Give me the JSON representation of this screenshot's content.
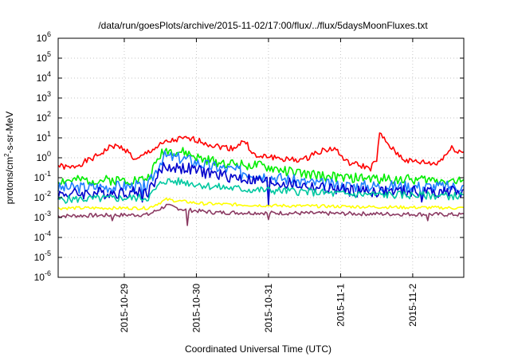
{
  "chart_data": {
    "type": "line",
    "title": "/data/run/goesPlots/archive/2015-11-02/17:00/flux/../flux/5daysMoonFluxes.txt",
    "xlabel": "Coordinated Universal Time (UTC)",
    "ylabel_parts": [
      "protons/cm",
      "2",
      "-s-sr-MeV"
    ],
    "y_scale": "log",
    "ylim": [
      1e-06,
      1000000.0
    ],
    "y_ticks": [
      {
        "base": "10",
        "exp": "-6",
        "value": 1e-06
      },
      {
        "base": "10",
        "exp": "-5",
        "value": 1e-05
      },
      {
        "base": "10",
        "exp": "-4",
        "value": 0.0001
      },
      {
        "base": "10",
        "exp": "-3",
        "value": 0.001
      },
      {
        "base": "10",
        "exp": "-2",
        "value": 0.01
      },
      {
        "base": "10",
        "exp": "-1",
        "value": 0.1
      },
      {
        "base": "10",
        "exp": "0",
        "value": 1
      },
      {
        "base": "10",
        "exp": "1",
        "value": 10
      },
      {
        "base": "10",
        "exp": "2",
        "value": 100
      },
      {
        "base": "10",
        "exp": "3",
        "value": 1000
      },
      {
        "base": "10",
        "exp": "4",
        "value": 10000
      },
      {
        "base": "10",
        "exp": "5",
        "value": 100000
      },
      {
        "base": "10",
        "exp": "6",
        "value": 1000000
      }
    ],
    "xlim": [
      "2015-10-28T02:00",
      "2015-11-02T17:00"
    ],
    "x_ticks": [
      {
        "label": "2015-10-29",
        "date": "2015-10-29T00:00"
      },
      {
        "label": "2015-10-30",
        "date": "2015-10-30T00:00"
      },
      {
        "label": "2015-10-31",
        "date": "2015-10-31T00:00"
      },
      {
        "label": "2015-11-1",
        "date": "2015-11-01T00:00"
      },
      {
        "label": "2015-11-2",
        "date": "2015-11-02T00:00"
      }
    ],
    "grid": true,
    "series": [
      {
        "color": "#ff0000",
        "base": [
          [
            "2015-10-28T02:00",
            0.4
          ],
          [
            "2015-10-28T06:00",
            0.3
          ],
          [
            "2015-10-28T14:00",
            1.0
          ],
          [
            "2015-10-28T20:00",
            4.0
          ],
          [
            "2015-10-29T00:00",
            3.0
          ],
          [
            "2015-10-29T04:00",
            0.7
          ],
          [
            "2015-10-29T08:00",
            2.0
          ],
          [
            "2015-10-29T14:00",
            6.0
          ],
          [
            "2015-10-29T19:00",
            9.0
          ],
          [
            "2015-10-30T00:00",
            8.0
          ],
          [
            "2015-10-30T06:00",
            4.0
          ],
          [
            "2015-10-30T12:00",
            3.0
          ],
          [
            "2015-10-30T16:00",
            7.0
          ],
          [
            "2015-10-30T20:00",
            1.0
          ],
          [
            "2015-10-31T00:00",
            1.2
          ],
          [
            "2015-10-31T06:00",
            0.8
          ],
          [
            "2015-10-31T12:00",
            0.8
          ],
          [
            "2015-10-31T16:00",
            2.0
          ],
          [
            "2015-10-31T22:00",
            3.0
          ],
          [
            "2015-11-01T02:00",
            0.6
          ],
          [
            "2015-11-01T10:00",
            0.3
          ],
          [
            "2015-11-01T12:00",
            0.8
          ],
          [
            "2015-11-01T13:00",
            15.0
          ],
          [
            "2015-11-01T18:00",
            2.0
          ],
          [
            "2015-11-01T22:00",
            0.7
          ],
          [
            "2015-11-02T08:00",
            0.5
          ],
          [
            "2015-11-02T13:00",
            3.0
          ],
          [
            "2015-11-02T17:00",
            1.8
          ]
        ],
        "noise": 0.15,
        "seed": 1,
        "spikes": []
      },
      {
        "color": "#00ee00",
        "base": [
          [
            "2015-10-28T02:00",
            0.07
          ],
          [
            "2015-10-29T06:00",
            0.08
          ],
          [
            "2015-10-29T08:00",
            0.1
          ],
          [
            "2015-10-29T13:00",
            2.5
          ],
          [
            "2015-10-29T20:00",
            1.8
          ],
          [
            "2015-10-30T02:00",
            0.8
          ],
          [
            "2015-10-30T12:00",
            0.5
          ],
          [
            "2015-10-30T20:00",
            0.4
          ],
          [
            "2015-10-31T04:00",
            0.25
          ],
          [
            "2015-10-31T12:00",
            0.15
          ],
          [
            "2015-11-01T00:00",
            0.1
          ],
          [
            "2015-11-02T17:00",
            0.07
          ]
        ],
        "noise": 0.25,
        "seed": 2,
        "spikes": []
      },
      {
        "color": "#1e7fff",
        "base": [
          [
            "2015-10-28T02:00",
            0.03
          ],
          [
            "2015-10-29T08:00",
            0.04
          ],
          [
            "2015-10-29T13:00",
            1.2
          ],
          [
            "2015-10-29T20:00",
            0.9
          ],
          [
            "2015-10-30T04:00",
            0.4
          ],
          [
            "2015-10-30T12:00",
            0.25
          ],
          [
            "2015-10-31T00:00",
            0.12
          ],
          [
            "2015-10-31T12:00",
            0.06
          ],
          [
            "2015-11-01T00:00",
            0.04
          ],
          [
            "2015-11-02T17:00",
            0.035
          ]
        ],
        "noise": 0.3,
        "seed": 3,
        "spikes": [
          [
            "2015-10-29T06:00",
            0.01
          ],
          [
            "2015-10-30T15:00",
            0.08
          ],
          [
            "2015-10-31T00:00",
            0.008
          ],
          [
            "2015-11-02T03:00",
            0.01
          ]
        ]
      },
      {
        "color": "#0000cc",
        "base": [
          [
            "2015-10-28T02:00",
            0.015
          ],
          [
            "2015-10-29T08:00",
            0.02
          ],
          [
            "2015-10-29T13:00",
            0.35
          ],
          [
            "2015-10-29T20:00",
            0.3
          ],
          [
            "2015-10-30T06:00",
            0.15
          ],
          [
            "2015-10-30T18:00",
            0.08
          ],
          [
            "2015-10-31T06:00",
            0.05
          ],
          [
            "2015-10-31T18:00",
            0.03
          ],
          [
            "2015-11-01T06:00",
            0.02
          ],
          [
            "2015-11-02T17:00",
            0.02
          ]
        ],
        "noise": 0.3,
        "seed": 4,
        "spikes": [
          [
            "2015-10-29T06:00",
            0.006
          ],
          [
            "2015-10-31T00:00",
            0.004
          ],
          [
            "2015-11-02T03:00",
            0.006
          ]
        ]
      },
      {
        "color": "#00c8a0",
        "base": [
          [
            "2015-10-28T02:00",
            0.008
          ],
          [
            "2015-10-29T08:00",
            0.01
          ],
          [
            "2015-10-29T13:00",
            0.07
          ],
          [
            "2015-10-29T20:00",
            0.06
          ],
          [
            "2015-10-30T06:00",
            0.035
          ],
          [
            "2015-10-30T18:00",
            0.025
          ],
          [
            "2015-10-31T12:00",
            0.02
          ],
          [
            "2015-11-01T00:00",
            0.015
          ],
          [
            "2015-11-02T17:00",
            0.012
          ]
        ],
        "noise": 0.2,
        "seed": 5,
        "spikes": []
      },
      {
        "color": "#ffff00",
        "base": [
          [
            "2015-10-28T02:00",
            0.003
          ],
          [
            "2015-10-29T08:00",
            0.003
          ],
          [
            "2015-10-29T14:00",
            0.008
          ],
          [
            "2015-10-30T02:00",
            0.005
          ],
          [
            "2015-10-31T00:00",
            0.004
          ],
          [
            "2015-11-02T17:00",
            0.003
          ]
        ],
        "noise": 0.08,
        "seed": 6,
        "spikes": []
      },
      {
        "color": "#8b3a62",
        "base": [
          [
            "2015-10-28T02:00",
            0.0012
          ],
          [
            "2015-10-29T08:00",
            0.0014
          ],
          [
            "2015-10-29T14:00",
            0.004
          ],
          [
            "2015-10-29T20:00",
            0.0025
          ],
          [
            "2015-10-30T06:00",
            0.0018
          ],
          [
            "2015-11-02T17:00",
            0.0014
          ]
        ],
        "noise": 0.1,
        "seed": 7,
        "spikes": [
          [
            "2015-10-28T20:00",
            0.0007
          ],
          [
            "2015-10-29T21:00",
            0.0004
          ],
          [
            "2015-10-31T00:00",
            0.0008
          ],
          [
            "2015-11-02T05:00",
            0.0007
          ]
        ]
      }
    ]
  }
}
